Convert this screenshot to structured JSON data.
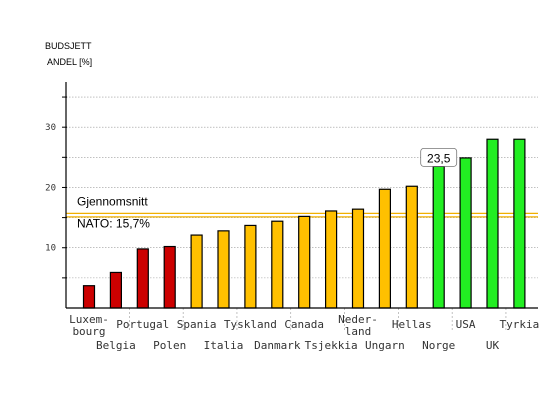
{
  "chart_data": {
    "type": "bar",
    "ylabel_line1": "BUDSJETT",
    "ylabel_line2": "ANDEL [%]",
    "ylim": [
      0,
      37
    ],
    "yticks": [
      10,
      20,
      30
    ],
    "grid": true,
    "categories": [
      "Luxem-\nbourg",
      "Belgia",
      "Portugal",
      "Polen",
      "Spania",
      "Italia",
      "Tyskland",
      "Danmark",
      "Canada",
      "Tsjekkia",
      "Neder-\nland",
      "Ungarn",
      "Hellas",
      "Norge",
      "USA",
      "UK",
      "Tyrkia"
    ],
    "values": [
      3.7,
      5.9,
      9.8,
      10.2,
      12.1,
      12.8,
      13.7,
      14.4,
      15.2,
      16.1,
      16.4,
      19.7,
      20.2,
      23.5,
      24.9,
      28.0,
      28.0
    ],
    "bar_colors": [
      "#cc0000",
      "#cc0000",
      "#cc0000",
      "#cc0000",
      "#ffc000",
      "#ffc000",
      "#ffc000",
      "#ffc000",
      "#ffc000",
      "#ffc000",
      "#ffc000",
      "#ffc000",
      "#ffc000",
      "#22ee22",
      "#22ee22",
      "#22ee22",
      "#22ee22"
    ],
    "average": {
      "value": 15.7,
      "label_line1": "Gjennomsnitt",
      "label_line2": "NATO: 15,7%",
      "color": "#f0b000"
    },
    "callout": {
      "category": "Norge",
      "text": "23,5"
    }
  }
}
